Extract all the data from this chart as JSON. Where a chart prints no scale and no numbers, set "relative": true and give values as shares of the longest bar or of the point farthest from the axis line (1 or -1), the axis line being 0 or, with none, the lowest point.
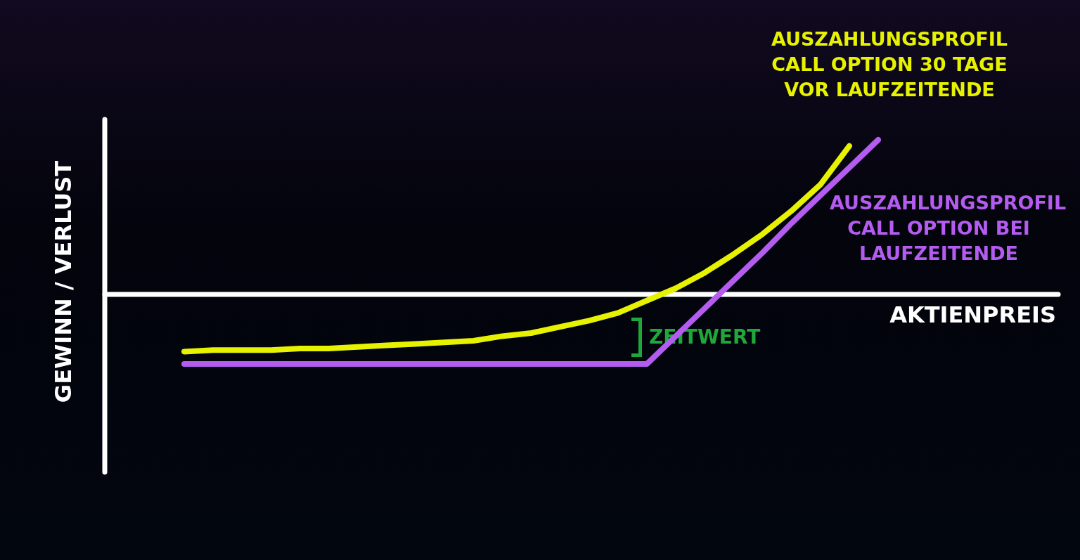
{
  "chart_data": {
    "type": "line",
    "relative": true,
    "xlabel": "AKTIENPREIS",
    "ylabel": "GEWINN / VERLUST",
    "categories": [
      null,
      null,
      null,
      null,
      null,
      null,
      null,
      null,
      null,
      null,
      null,
      null,
      null,
      null,
      null,
      null,
      null,
      null,
      null,
      null,
      null,
      null,
      null,
      null,
      null
    ],
    "series": [
      {
        "name": "AUSZAHLUNGSPROFIL CALL OPTION 30 TAGE VOR LAUFZEITENDE",
        "color": "#e6f200",
        "values": [
          -0.37,
          -0.36,
          -0.36,
          -0.36,
          -0.35,
          -0.35,
          -0.34,
          -0.33,
          -0.32,
          -0.31,
          -0.3,
          -0.27,
          -0.25,
          -0.21,
          -0.17,
          -0.12,
          -0.04,
          0.04,
          0.14,
          0.26,
          0.39,
          0.54,
          0.71,
          0.96,
          null
        ]
      },
      {
        "name": "AUSZAHLUNGSPROFIL CALL OPTION BEI LAUFZEITENDE",
        "color": "#b45cf0",
        "values": [
          -0.45,
          -0.45,
          -0.45,
          -0.45,
          -0.45,
          -0.45,
          -0.45,
          -0.45,
          -0.45,
          -0.45,
          -0.45,
          -0.45,
          -0.45,
          -0.45,
          -0.45,
          -0.45,
          -0.45,
          -0.27,
          -0.09,
          0.09,
          0.27,
          0.46,
          0.64,
          0.82,
          1.0
        ]
      }
    ],
    "annotations": [
      "ZEITWERT"
    ],
    "legend": false,
    "marker": "none",
    "line_style": "solid"
  }
}
